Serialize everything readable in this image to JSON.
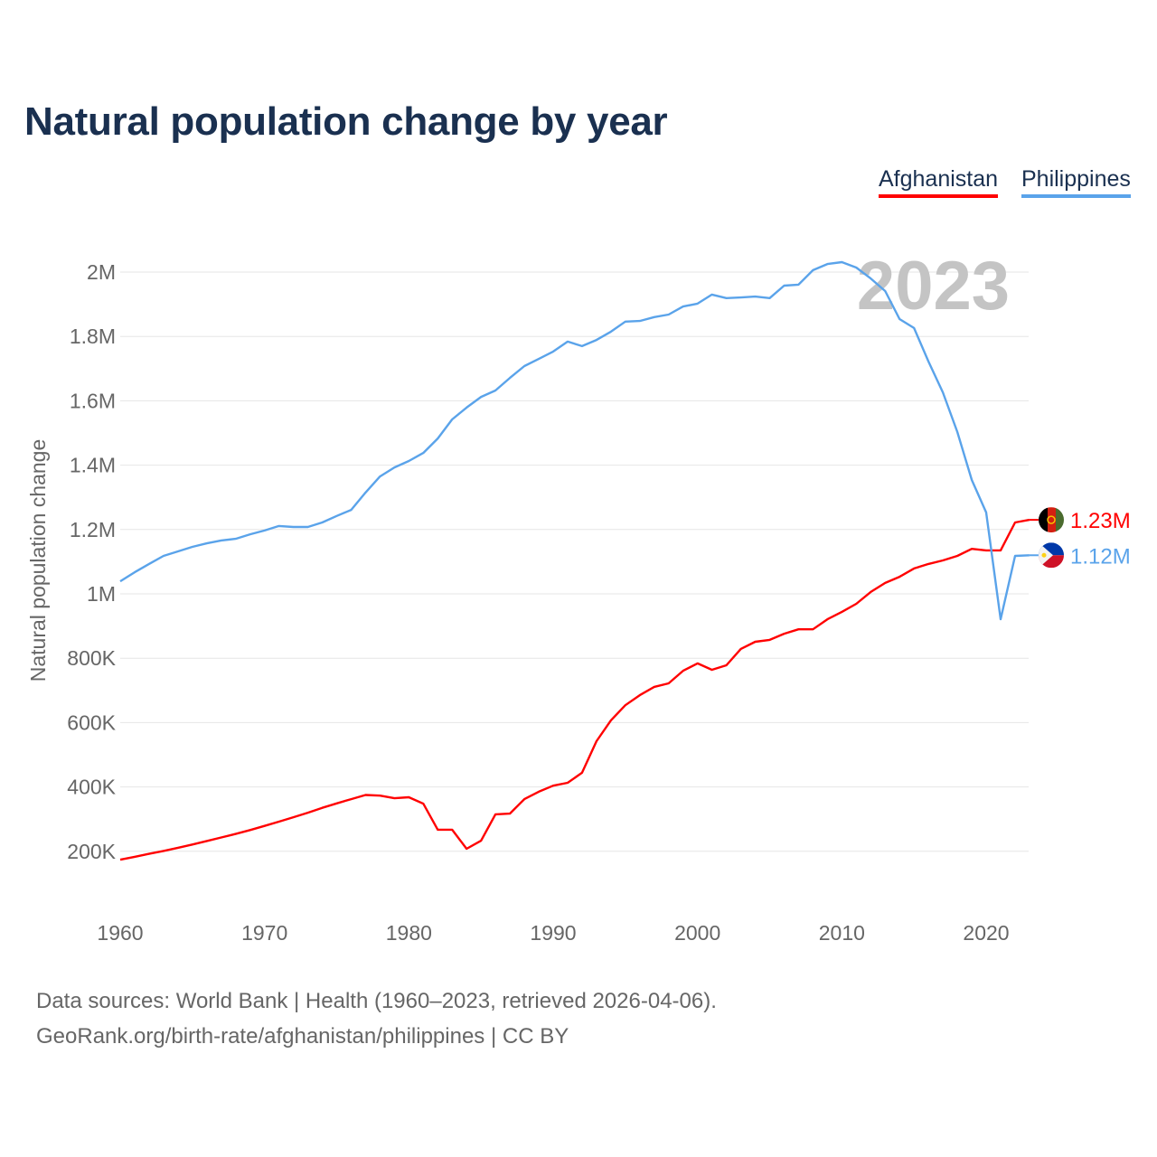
{
  "title": "Natural population change by year",
  "legend": [
    {
      "name": "Afghanistan",
      "color": "#ff0000"
    },
    {
      "name": "Philippines",
      "color": "#5aa3ea"
    }
  ],
  "year_watermark": "2023",
  "source": {
    "line1": "Data sources: World Bank | Health (1960–2023, retrieved 2026-04-06).",
    "line2": "GeoRank.org/birth-rate/afghanistan/philippines | CC BY"
  },
  "chart_data": {
    "type": "line",
    "title": "Natural population change by year",
    "xlabel": "",
    "ylabel": "Natural population change",
    "xlim": [
      1960,
      2023
    ],
    "ylim": [
      0,
      2000000
    ],
    "x_ticks": [
      "1960",
      "1970",
      "1980",
      "1990",
      "2000",
      "2010",
      "2020"
    ],
    "y_ticks": [
      {
        "value": 200000,
        "label": "200K"
      },
      {
        "value": 400000,
        "label": "400K"
      },
      {
        "value": 600000,
        "label": "600K"
      },
      {
        "value": 800000,
        "label": "800K"
      },
      {
        "value": 1000000,
        "label": "1M"
      },
      {
        "value": 1200000,
        "label": "1.2M"
      },
      {
        "value": 1400000,
        "label": "1.4M"
      },
      {
        "value": 1600000,
        "label": "1.6M"
      },
      {
        "value": 1800000,
        "label": "1.8M"
      },
      {
        "value": 2000000,
        "label": "2M"
      }
    ],
    "grid": true,
    "x_start": 1960,
    "series": [
      {
        "name": "Afghanistan",
        "color": "#ff0000",
        "end_label": "1.23M",
        "flag": "afghanistan-flag",
        "values_millions": [
          0.174,
          0.183,
          0.192,
          0.201,
          0.211,
          0.221,
          0.232,
          0.243,
          0.254,
          0.266,
          0.279,
          0.292,
          0.306,
          0.32,
          0.335,
          0.349,
          0.362,
          0.375,
          0.373,
          0.365,
          0.368,
          0.348,
          0.267,
          0.267,
          0.208,
          0.233,
          0.315,
          0.317,
          0.362,
          0.385,
          0.404,
          0.413,
          0.444,
          0.542,
          0.607,
          0.654,
          0.685,
          0.711,
          0.722,
          0.761,
          0.784,
          0.764,
          0.778,
          0.829,
          0.851,
          0.857,
          0.876,
          0.89,
          0.89,
          0.921,
          0.944,
          0.969,
          1.006,
          1.034,
          1.053,
          1.079,
          1.093,
          1.104,
          1.118,
          1.14,
          1.135,
          1.135,
          1.222,
          1.23
        ]
      },
      {
        "name": "Philippines",
        "color": "#5aa3ea",
        "end_label": "1.12M",
        "flag": "philippines-flag",
        "values_millions": [
          1.039,
          1.067,
          1.093,
          1.118,
          1.132,
          1.146,
          1.157,
          1.166,
          1.171,
          1.185,
          1.197,
          1.211,
          1.208,
          1.208,
          1.222,
          1.242,
          1.261,
          1.315,
          1.365,
          1.393,
          1.413,
          1.438,
          1.483,
          1.542,
          1.579,
          1.612,
          1.632,
          1.671,
          1.708,
          1.73,
          1.753,
          1.784,
          1.77,
          1.789,
          1.815,
          1.846,
          1.848,
          1.86,
          1.868,
          1.893,
          1.902,
          1.93,
          1.919,
          1.921,
          1.924,
          1.919,
          1.958,
          1.961,
          2.006,
          2.025,
          2.031,
          2.014,
          1.98,
          1.941,
          1.854,
          1.826,
          1.722,
          1.626,
          1.503,
          1.354,
          1.253,
          0.921,
          1.118,
          1.12
        ]
      }
    ]
  }
}
